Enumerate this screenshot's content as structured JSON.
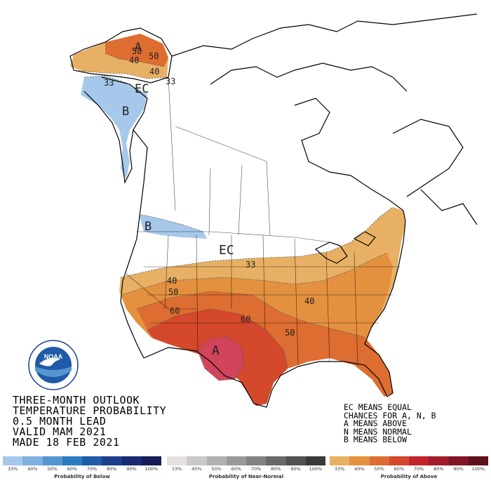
{
  "title_lines": [
    "THREE-MONTH OUTLOOK",
    "TEMPERATURE PROBABILITY",
    "0.5 MONTH LEAD",
    "VALID MAM 2021",
    "MADE 18 FEB 2021"
  ],
  "notes": [
    "EC MEANS EQUAL",
    "CHANCES FOR A, N, B",
    "A MEANS ABOVE",
    "N MEANS NORMAL",
    "B MEANS BELOW"
  ],
  "map_labels": {
    "ec_alaska": "EC",
    "ec_conus": "EC",
    "a_alaska": "A",
    "a_texas": "A",
    "b_alaska": "B",
    "b_northwest": "B",
    "c33_ak": "33",
    "c33_ak2": "33",
    "c40_ak": "40",
    "c40_ak2": "40",
    "c50_ak": "50",
    "c50_ak2": "50",
    "c33_conus": "33",
    "c40_w": "40",
    "c40_e": "40",
    "c50_w": "50",
    "c50_e": "50",
    "c60_w": "60",
    "c60_c": "60"
  },
  "logo_text": "NOAA",
  "scales": [
    {
      "caption": "Probability of Below",
      "ticks": [
        "33%",
        "40%",
        "50%",
        "60%",
        "70%",
        "80%",
        "90%",
        "100%"
      ],
      "colors": [
        "#a6c8ea",
        "#7eb0e0",
        "#5596d1",
        "#2d7bc0",
        "#1f5ba6",
        "#1c3f8c",
        "#1a2a72",
        "#151c56"
      ]
    },
    {
      "caption": "Probability of Near-Normal",
      "ticks": [
        "33%",
        "40%",
        "50%",
        "60%",
        "70%",
        "80%",
        "90%",
        "100%"
      ],
      "colors": [
        "#e4e0e0",
        "#cbc8c8",
        "#b3b0b0",
        "#9b9898",
        "#838181",
        "#6b6969",
        "#535252",
        "#3b3a3a"
      ]
    },
    {
      "caption": "Probability of Above",
      "ticks": [
        "33%",
        "40%",
        "50%",
        "60%",
        "70%",
        "80%",
        "90%",
        "100%"
      ],
      "colors": [
        "#e8b064",
        "#e4913f",
        "#dd6d31",
        "#d4482b",
        "#c2252e",
        "#a11b2c",
        "#801526",
        "#5e0f1c"
      ]
    }
  ]
}
